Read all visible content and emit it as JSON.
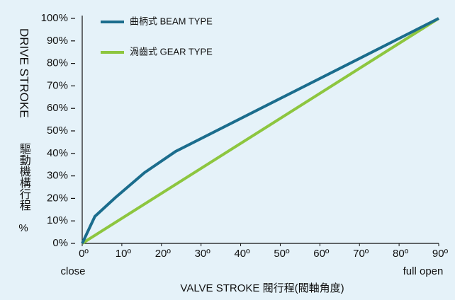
{
  "chart_data": {
    "type": "line",
    "y_label": "DRIVE STROKE",
    "y_label_cn": "驅動機構行程",
    "y_label_unit": "%",
    "x_label": "VALVE STROKE 閥行程(閥軸角度)",
    "annotations": [
      "close",
      "full open"
    ],
    "xlim": [
      0,
      90
    ],
    "ylim": [
      0,
      100
    ],
    "xticks": [
      {
        "value": 0,
        "label": "0º"
      },
      {
        "value": 10,
        "label": "10º"
      },
      {
        "value": 20,
        "label": "20º"
      },
      {
        "value": 30,
        "label": "30º"
      },
      {
        "value": 40,
        "label": "40º"
      },
      {
        "value": 50,
        "label": "50º"
      },
      {
        "value": 60,
        "label": "60º"
      },
      {
        "value": 70,
        "label": "70º"
      },
      {
        "value": 80,
        "label": "80º"
      },
      {
        "value": 90,
        "label": "90º"
      }
    ],
    "yticks": [
      {
        "value": 0,
        "label": "0%"
      },
      {
        "value": 10,
        "label": "10%"
      },
      {
        "value": 20,
        "label": "20%"
      },
      {
        "value": 30,
        "label": "30%"
      },
      {
        "value": 40,
        "label": "40%"
      },
      {
        "value": 50,
        "label": "50%"
      },
      {
        "value": 60,
        "label": "60%"
      },
      {
        "value": 70,
        "label": "70%"
      },
      {
        "value": 80,
        "label": "80%"
      },
      {
        "value": 90,
        "label": "90%"
      },
      {
        "value": 100,
        "label": "100%"
      }
    ],
    "grid": false,
    "legend": "top-left",
    "series": [
      {
        "name": "曲柄式 BEAM TYPE",
        "color": "#1b6d8d",
        "x": [
          0,
          3.2,
          8.4,
          15.7,
          23.6,
          90
        ],
        "values": [
          0,
          12,
          20.4,
          31.4,
          40.9,
          100
        ]
      },
      {
        "name": "渦齒式 GEAR TYPE",
        "color": "#8dc63f",
        "x": [
          0,
          90
        ],
        "values": [
          0,
          100
        ]
      }
    ]
  }
}
